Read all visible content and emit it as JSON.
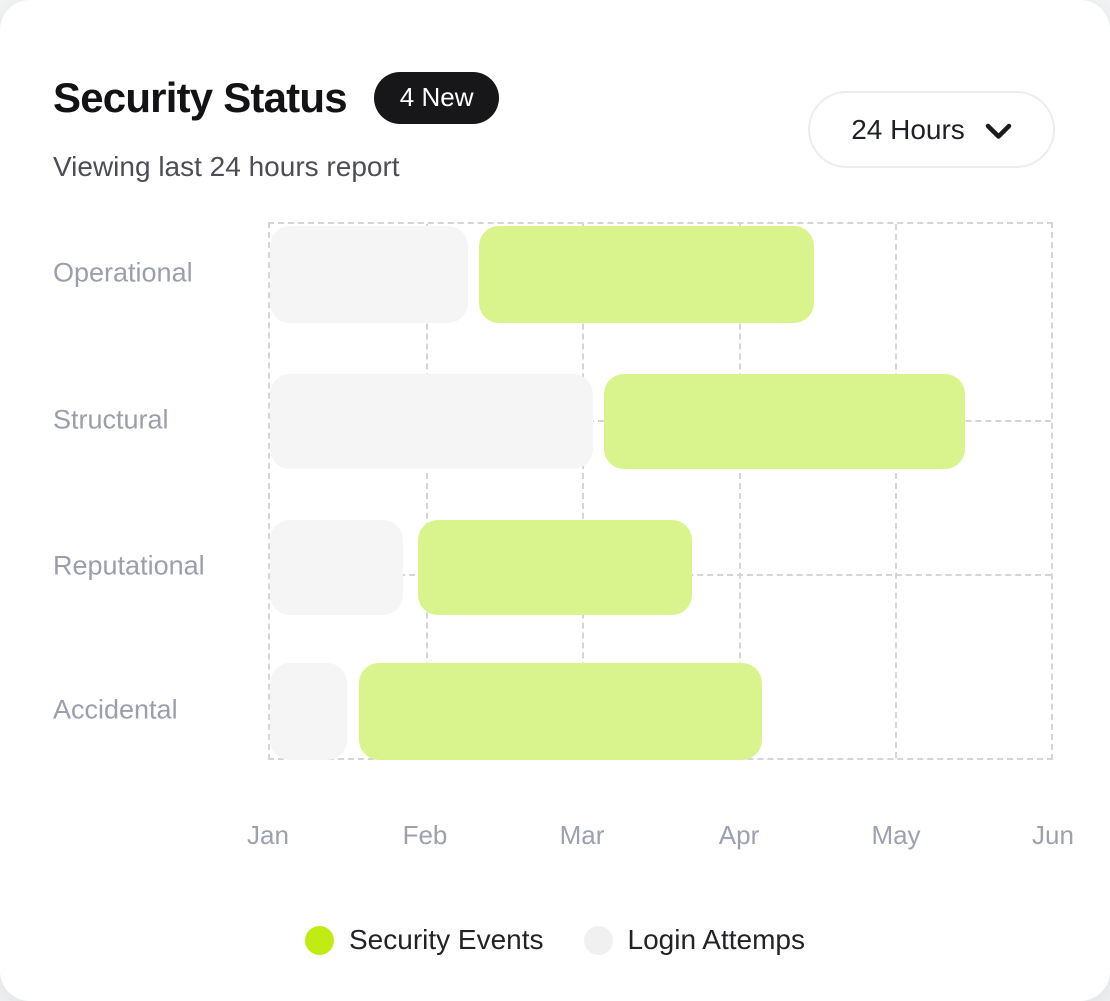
{
  "header": {
    "title": "Security Status",
    "badge": "4 New",
    "subtitle": "Viewing last 24 hours report"
  },
  "controls": {
    "range_selector": {
      "value": "24 Hours",
      "icon": "chevron-down-icon"
    }
  },
  "chart_data": {
    "type": "bar",
    "subtype": "horizontal-gantt",
    "x_ticks": [
      "Jan",
      "Feb",
      "Mar",
      "Apr",
      "May",
      "Jun"
    ],
    "x_range_months": [
      0,
      5
    ],
    "grid": "dashed",
    "rows": [
      {
        "label": "Operational",
        "login_attempts": [
          0,
          1.27
        ],
        "security_events": [
          1.34,
          3.48
        ]
      },
      {
        "label": "Structural",
        "login_attempts": [
          0,
          2.07
        ],
        "security_events": [
          2.14,
          4.45
        ]
      },
      {
        "label": "Reputational",
        "login_attempts": [
          0,
          0.85
        ],
        "security_events": [
          0.95,
          2.7
        ]
      },
      {
        "label": "Accidental",
        "login_attempts": [
          0,
          0.49
        ],
        "security_events": [
          0.57,
          3.15
        ]
      }
    ],
    "legend": [
      {
        "label": "Security Events",
        "color": "#c1ec13",
        "series": "security_events"
      },
      {
        "label": "Login Attemps",
        "color": "#f0f0f1",
        "series": "login_attempts"
      }
    ],
    "colors": {
      "security_events_bar": "#d9f48c",
      "login_attempts_bar": "#f5f5f6",
      "gridline": "#d4d5d9",
      "label_text": "#9b9eac"
    }
  }
}
